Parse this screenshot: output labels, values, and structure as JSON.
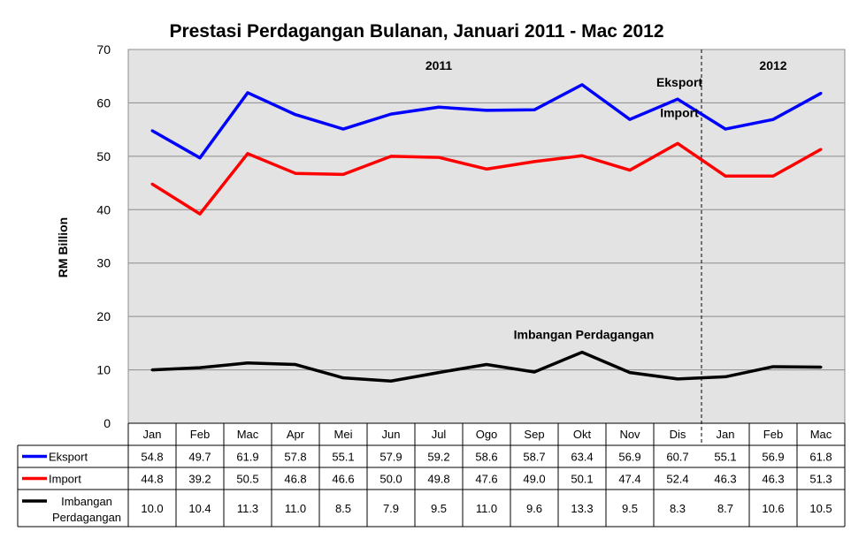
{
  "chart_data": {
    "type": "line",
    "title": "Prestasi Perdagangan Bulanan, Januari 2011 - Mac 2012",
    "ylabel": "RM Billion",
    "xlabel": "",
    "ylim": [
      0,
      70
    ],
    "yticks": [
      0,
      10,
      20,
      30,
      40,
      50,
      60,
      70
    ],
    "grid": true,
    "categories": [
      "Jan",
      "Feb",
      "Mac",
      "Apr",
      "Mei",
      "Jun",
      "Jul",
      "Ogo",
      "Sep",
      "Okt",
      "Nov",
      "Dis",
      "Jan",
      "Feb",
      "Mac"
    ],
    "year_labels": [
      {
        "text": "2011",
        "category_index": 6
      },
      {
        "text": "2012",
        "category_index": 13
      }
    ],
    "year_divider_after_index": 11,
    "series": [
      {
        "name": "Eksport",
        "color": "#0000ff",
        "label": "Eksport",
        "values": [
          54.8,
          49.7,
          61.9,
          57.8,
          55.1,
          57.9,
          59.2,
          58.6,
          58.7,
          63.4,
          56.9,
          60.7,
          55.1,
          56.9,
          61.8
        ]
      },
      {
        "name": "Import",
        "color": "#ff0000",
        "label": "Import",
        "values": [
          44.8,
          39.2,
          50.5,
          46.8,
          46.6,
          50.0,
          49.8,
          47.6,
          49.0,
          50.1,
          47.4,
          52.4,
          46.3,
          46.3,
          51.3
        ]
      },
      {
        "name": "Imbangan Perdagangan",
        "color": "#000000",
        "label": "Imbangan Perdagangan",
        "values": [
          10.0,
          10.4,
          11.3,
          11.0,
          8.5,
          7.9,
          9.5,
          11.0,
          9.6,
          13.3,
          9.5,
          8.3,
          8.7,
          10.6,
          10.5
        ]
      }
    ],
    "table": {
      "rows": [
        {
          "legend_lines": [
            "Eksport"
          ],
          "cells": [
            "54.8",
            "49.7",
            "61.9",
            "57.8",
            "55.1",
            "57.9",
            "59.2",
            "58.6",
            "58.7",
            "63.4",
            "56.9",
            "60.7",
            "55.1",
            "56.9",
            "61.8"
          ]
        },
        {
          "legend_lines": [
            "Import"
          ],
          "cells": [
            "44.8",
            "39.2",
            "50.5",
            "46.8",
            "46.6",
            "50.0",
            "49.8",
            "47.6",
            "49.0",
            "50.1",
            "47.4",
            "52.4",
            "46.3",
            "46.3",
            "51.3"
          ]
        },
        {
          "legend_lines": [
            "Imbangan",
            "Perdagangan"
          ],
          "cells": [
            "10.0",
            "10.4",
            "11.3",
            "11.0",
            "8.5",
            "7.9",
            "9.5",
            "11.0",
            "9.6",
            "13.3",
            "9.5",
            "8.3",
            "8.7",
            "10.6",
            "10.5"
          ]
        }
      ]
    },
    "colors": {
      "plot_background": "#e3e3e3",
      "grid": "#8c8c8c"
    }
  }
}
